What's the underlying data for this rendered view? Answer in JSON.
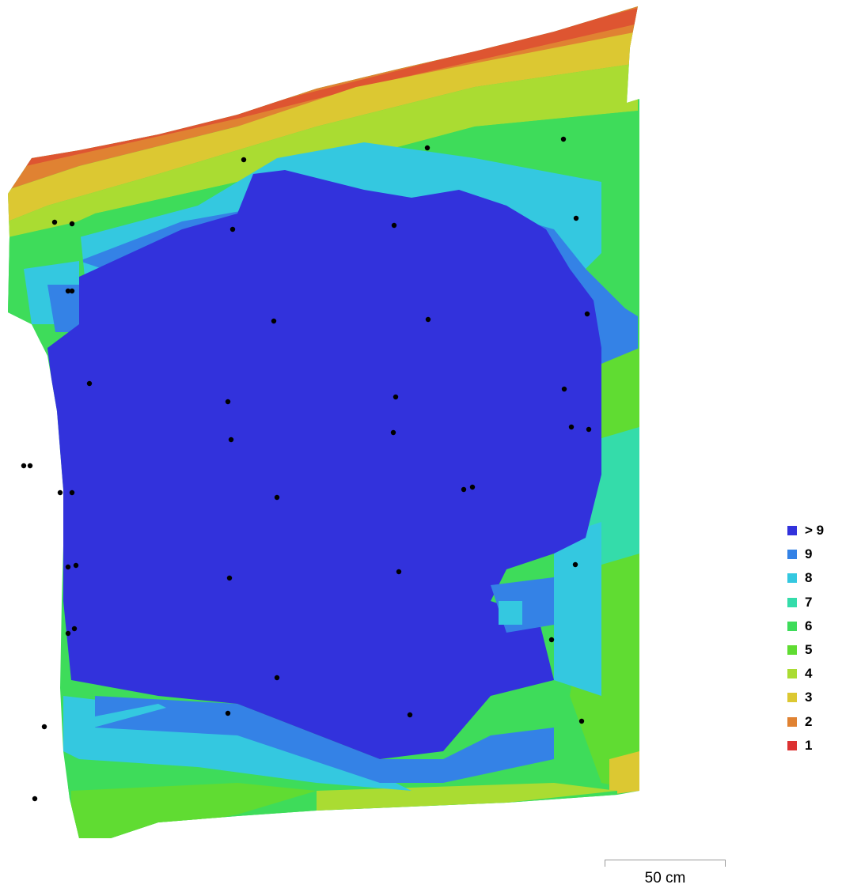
{
  "legend": {
    "items": [
      {
        "label": "> 9",
        "color": "#3232dc"
      },
      {
        "label": "9",
        "color": "#3482e6"
      },
      {
        "label": "8",
        "color": "#34c8e0"
      },
      {
        "label": "7",
        "color": "#34dcaa"
      },
      {
        "label": "6",
        "color": "#3edc5a"
      },
      {
        "label": "5",
        "color": "#60dc32"
      },
      {
        "label": "4",
        "color": "#aadc32"
      },
      {
        "label": "3",
        "color": "#dcc832"
      },
      {
        "label": "2",
        "color": "#e08232"
      },
      {
        "label": "1",
        "color": "#dc3232"
      }
    ]
  },
  "scale": {
    "label": "50 cm"
  },
  "map": {
    "marker_color": "#000000"
  }
}
